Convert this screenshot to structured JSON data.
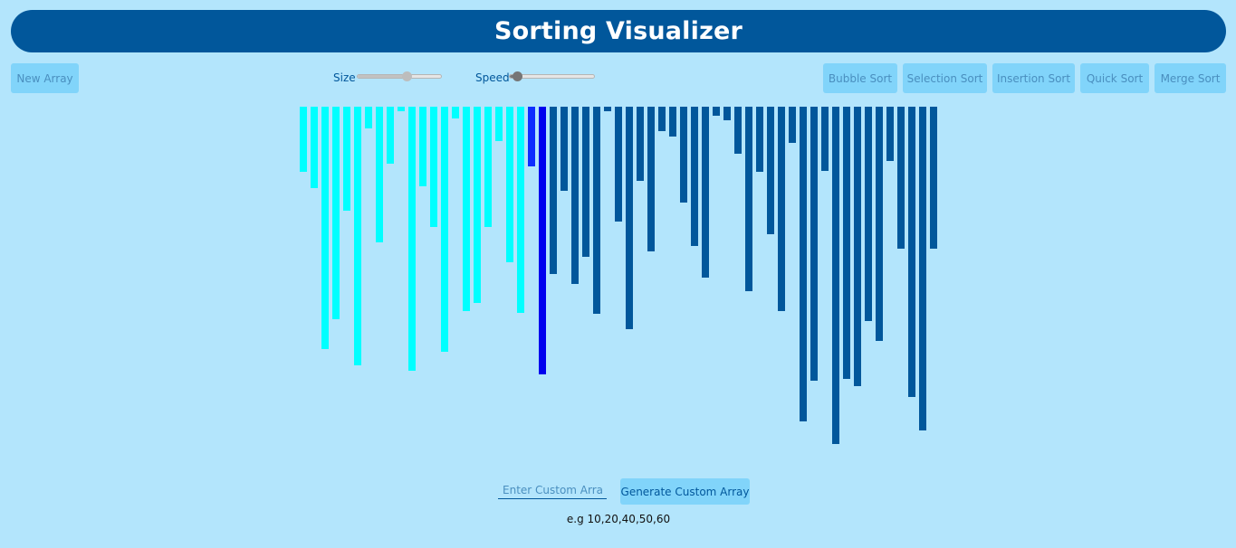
{
  "header": {
    "title": "Sorting Visualizer"
  },
  "toolbar": {
    "new_array_label": "New Array",
    "size_label": "Size",
    "speed_label": "Speed",
    "size_value": 0.6,
    "speed_value": 0.05,
    "algorithms": [
      "Bubble Sort",
      "Selection Sort",
      "Insertion Sort",
      "Quick Sort",
      "Merge Sort"
    ]
  },
  "colors": {
    "background": "#b3e5fc",
    "header": "#01579b",
    "default_bar": "#01579b",
    "sorted_bar": "#00ffff",
    "active_bar": "#0d2dff",
    "compare_bar": "#0000ee",
    "button": "#81d4fa"
  },
  "array": {
    "values": [
      72,
      90,
      268,
      235,
      115,
      286,
      24,
      150,
      63,
      5,
      292,
      88,
      133,
      271,
      13,
      226,
      217,
      133,
      38,
      172,
      228,
      66,
      296,
      185,
      93,
      196,
      166,
      229,
      5,
      127,
      246,
      82,
      160,
      27,
      33,
      106,
      154,
      189,
      10,
      15,
      52,
      204,
      72,
      141,
      226,
      40,
      348,
      303,
      71,
      373,
      301,
      309,
      237,
      259,
      60,
      157,
      321,
      358,
      157
    ],
    "states": [
      "sorted",
      "sorted",
      "sorted",
      "sorted",
      "sorted",
      "sorted",
      "sorted",
      "sorted",
      "sorted",
      "sorted",
      "sorted",
      "sorted",
      "sorted",
      "sorted",
      "sorted",
      "sorted",
      "sorted",
      "sorted",
      "sorted",
      "sorted",
      "sorted",
      "active",
      "compare",
      "default",
      "default",
      "default",
      "default",
      "default",
      "default",
      "default",
      "default",
      "default",
      "default",
      "default",
      "default",
      "default",
      "default",
      "default",
      "default",
      "default",
      "default",
      "default",
      "default",
      "default",
      "default",
      "default",
      "default",
      "default",
      "default",
      "default",
      "default",
      "default",
      "default",
      "default",
      "default",
      "default",
      "default",
      "default",
      "default"
    ]
  },
  "custom": {
    "placeholder": "Enter Custom Array",
    "generate_label": "Generate Custom Array",
    "hint": "e.g 10,20,40,50,60"
  }
}
